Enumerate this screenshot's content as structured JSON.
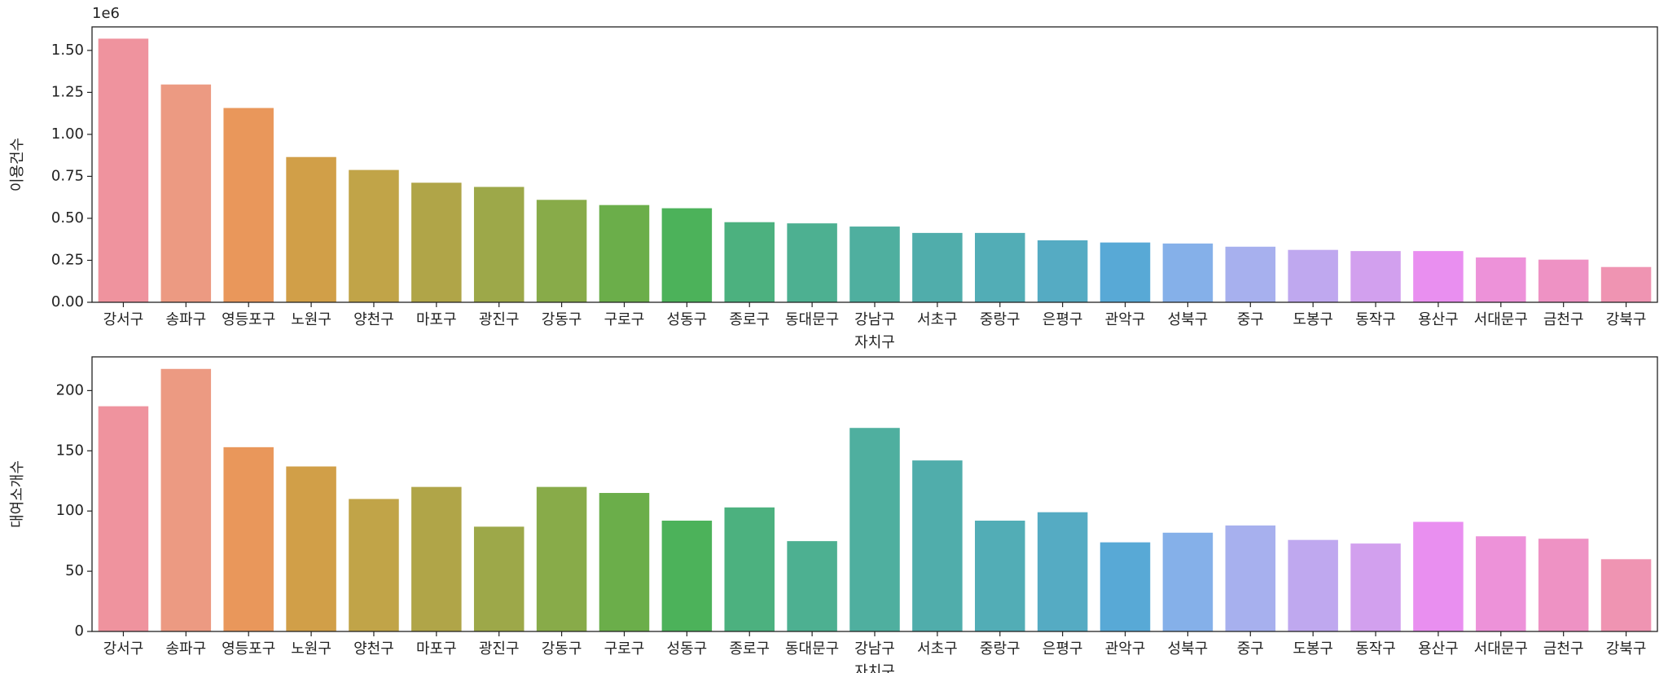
{
  "chart_data": [
    {
      "type": "bar",
      "offset_text": "1e6",
      "xlabel": "자치구",
      "ylabel": "이용건수",
      "categories": [
        "강서구",
        "송파구",
        "영등포구",
        "노원구",
        "양천구",
        "마포구",
        "광진구",
        "강동구",
        "구로구",
        "성동구",
        "종로구",
        "동대문구",
        "강남구",
        "서초구",
        "중랑구",
        "은평구",
        "관악구",
        "성북구",
        "중구",
        "도봉구",
        "동작구",
        "용산구",
        "서대문구",
        "금천구",
        "강북구"
      ],
      "values": [
        1.57,
        1.297,
        1.157,
        0.865,
        0.788,
        0.712,
        0.687,
        0.61,
        0.579,
        0.56,
        0.477,
        0.47,
        0.451,
        0.413,
        0.413,
        0.369,
        0.356,
        0.35,
        0.331,
        0.312,
        0.305,
        0.305,
        0.267,
        0.254,
        0.21
      ],
      "colors": [
        "#ef939e",
        "#ec9a82",
        "#e9975b",
        "#d19f48",
        "#c1a448",
        "#b0a548",
        "#9da849",
        "#88ab49",
        "#6bae4a",
        "#4cb25a",
        "#4cb17f",
        "#4db091",
        "#4faf9f",
        "#50adab",
        "#52adb6",
        "#55abc3",
        "#58a9d6",
        "#85b0e9",
        "#a7b0ee",
        "#bfa8ef",
        "#d2a0ee",
        "#e98ff0",
        "#ed92d9",
        "#ee92c4",
        "#ef94b2"
      ],
      "ylim": [
        0,
        1.64
      ],
      "yticks": [
        {
          "value": 0,
          "label": "0.00"
        },
        {
          "value": 0.25,
          "label": "0.25"
        },
        {
          "value": 0.5,
          "label": "0.50"
        },
        {
          "value": 0.75,
          "label": "0.75"
        },
        {
          "value": 1,
          "label": "1.00"
        },
        {
          "value": 1.25,
          "label": "1.25"
        },
        {
          "value": 1.5,
          "label": "1.50"
        }
      ]
    },
    {
      "type": "bar",
      "xlabel": "자치구",
      "ylabel": "대여소개수",
      "categories": [
        "강서구",
        "송파구",
        "영등포구",
        "노원구",
        "양천구",
        "마포구",
        "광진구",
        "강동구",
        "구로구",
        "성동구",
        "종로구",
        "동대문구",
        "강남구",
        "서초구",
        "중랑구",
        "은평구",
        "관악구",
        "성북구",
        "중구",
        "도봉구",
        "동작구",
        "용산구",
        "서대문구",
        "금천구",
        "강북구"
      ],
      "values": [
        187,
        218,
        153,
        137,
        110,
        120,
        87,
        120,
        115,
        92,
        103,
        75,
        169,
        142,
        92,
        99,
        74,
        82,
        88,
        76,
        73,
        91,
        79,
        77,
        60
      ],
      "colors": [
        "#ef939e",
        "#ec9a82",
        "#e9975b",
        "#d19f48",
        "#c1a448",
        "#b0a548",
        "#9da849",
        "#88ab49",
        "#6bae4a",
        "#4cb25a",
        "#4cb17f",
        "#4db091",
        "#4faf9f",
        "#50adab",
        "#52adb6",
        "#55abc3",
        "#58a9d6",
        "#85b0e9",
        "#a7b0ee",
        "#bfa8ef",
        "#d2a0ee",
        "#e98ff0",
        "#ed92d9",
        "#ee92c4",
        "#ef94b2"
      ],
      "ylim": [
        0,
        228
      ],
      "yticks": [
        0,
        50,
        100,
        150,
        200
      ]
    }
  ]
}
